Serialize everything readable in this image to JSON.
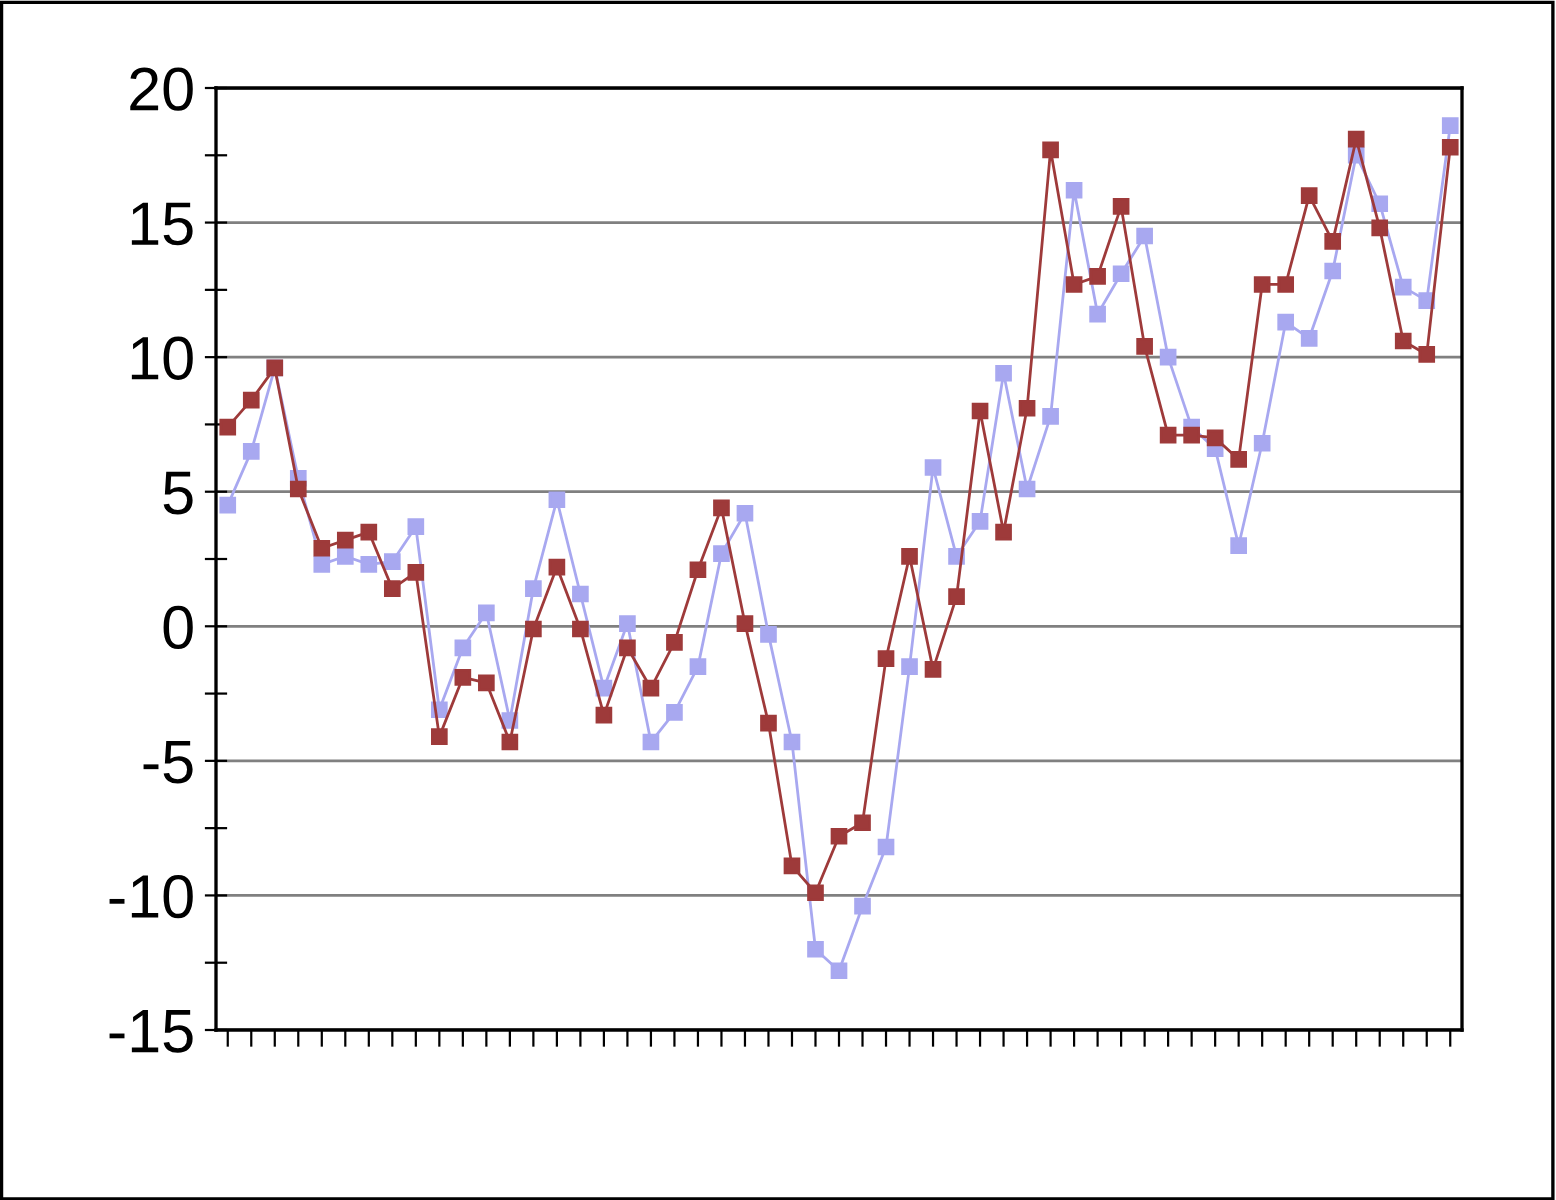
{
  "chart_data": {
    "type": "line",
    "categories": [
      null,
      null,
      null,
      null,
      null,
      null,
      null,
      null,
      null,
      null,
      null,
      null,
      null,
      null,
      null,
      null,
      null,
      null,
      null,
      null,
      null,
      null,
      null,
      null,
      null,
      null,
      null,
      null,
      null,
      null,
      null,
      null,
      null,
      null,
      null,
      null,
      null,
      null,
      null,
      null,
      null,
      null,
      null,
      null,
      null,
      null,
      null,
      null,
      null,
      null,
      null,
      null,
      null
    ],
    "series": [
      {
        "color": "#a8a8f0",
        "values": [
          4.5,
          6.5,
          9.6,
          5.5,
          2.3,
          2.6,
          2.3,
          2.4,
          3.7,
          -3.1,
          -0.8,
          0.5,
          -3.5,
          1.4,
          4.7,
          1.2,
          -2.3,
          0.1,
          -4.3,
          -3.2,
          -1.5,
          2.7,
          4.2,
          -0.3,
          -4.3,
          -12.0,
          -12.8,
          -10.4,
          -8.2,
          -1.5,
          5.9,
          2.6,
          3.9,
          9.4,
          5.1,
          7.8,
          16.2,
          11.6,
          13.1,
          14.5,
          10.0,
          7.4,
          6.6,
          3.0,
          6.8,
          11.3,
          10.7,
          13.2,
          17.5,
          15.7,
          12.6,
          12.1,
          18.6
        ]
      },
      {
        "color": "#9e3a3a",
        "values": [
          7.4,
          8.4,
          9.6,
          5.1,
          2.9,
          3.2,
          3.5,
          1.4,
          2.0,
          -4.1,
          -1.9,
          -2.1,
          -4.3,
          -0.1,
          2.2,
          -0.1,
          -3.3,
          -0.8,
          -2.3,
          -0.6,
          2.1,
          4.4,
          0.1,
          -3.6,
          -8.9,
          -9.9,
          -7.8,
          -7.3,
          -1.2,
          2.6,
          -1.6,
          1.1,
          8.0,
          3.5,
          8.1,
          17.7,
          12.7,
          13.0,
          15.6,
          10.4,
          7.1,
          7.1,
          7.0,
          6.2,
          12.7,
          12.7,
          16.0,
          14.3,
          18.1,
          14.8,
          10.6,
          10.1,
          17.8
        ]
      }
    ],
    "ylim": [
      -15,
      20
    ],
    "yticks": [
      -15,
      {
        "value": -12.5,
        "label": null
      },
      -10,
      {
        "value": -7.5,
        "label": null
      },
      -5,
      {
        "value": -2.5,
        "label": null
      },
      0,
      {
        "value": 2.5,
        "label": null
      },
      5,
      {
        "value": 7.5,
        "label": null
      },
      10,
      {
        "value": 12.5,
        "label": null
      },
      15,
      {
        "value": 17.5,
        "label": null
      },
      20
    ],
    "grid": "y",
    "marker": "square",
    "line_style": "solid",
    "legend": false
  }
}
